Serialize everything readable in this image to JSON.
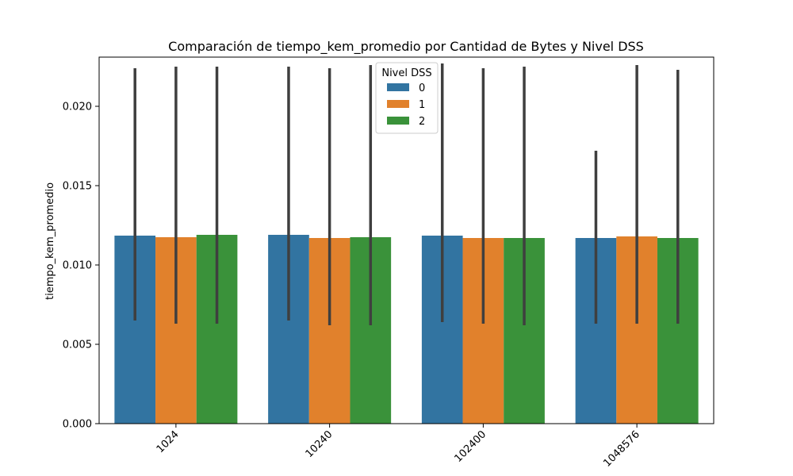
{
  "chart_data": {
    "type": "bar",
    "title": "Comparación de tiempo_kem_promedio por Cantidad de Bytes y Nivel DSS",
    "xlabel": "",
    "ylabel": "tiempo_kem_promedio",
    "categories": [
      "1024",
      "10240",
      "102400",
      "1048576"
    ],
    "ylim": [
      0,
      0.0231
    ],
    "yticks": [
      0.0,
      0.005,
      0.01,
      0.015,
      0.02
    ],
    "ytick_labels": [
      "0.000",
      "0.005",
      "0.010",
      "0.015",
      "0.020"
    ],
    "grid": false,
    "legend": {
      "title": "Nivel DSS",
      "placement": "top-center"
    },
    "series": [
      {
        "name": "0",
        "color": "#3274a1",
        "values": [
          0.01185,
          0.0119,
          0.01185,
          0.0117
        ],
        "err_low": [
          0.0065,
          0.0065,
          0.0064,
          0.0063
        ],
        "err_high": [
          0.0224,
          0.0225,
          0.0227,
          0.0172
        ]
      },
      {
        "name": "1",
        "color": "#e1812c",
        "values": [
          0.01175,
          0.0117,
          0.0117,
          0.0118
        ],
        "err_low": [
          0.0063,
          0.0062,
          0.0063,
          0.0063
        ],
        "err_high": [
          0.0225,
          0.0224,
          0.0224,
          0.0226
        ]
      },
      {
        "name": "2",
        "color": "#3a923a",
        "values": [
          0.0119,
          0.01175,
          0.0117,
          0.0117
        ],
        "err_low": [
          0.0063,
          0.0062,
          0.0062,
          0.0063
        ],
        "err_high": [
          0.0225,
          0.0226,
          0.0225,
          0.0223
        ]
      }
    ]
  }
}
